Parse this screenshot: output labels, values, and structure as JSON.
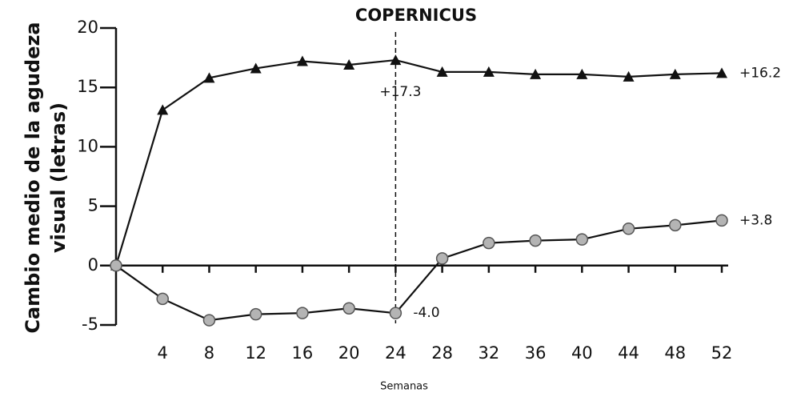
{
  "chart_data": {
    "type": "line",
    "title": "COPERNICUS",
    "xlabel": "Semanas",
    "ylabel": [
      "Cambio medio de la agudeza",
      "visual (letras)"
    ],
    "x": [
      0,
      4,
      8,
      12,
      16,
      20,
      24,
      28,
      32,
      36,
      40,
      44,
      48,
      52
    ],
    "xlim": [
      0,
      52
    ],
    "xticks": [
      4,
      8,
      12,
      16,
      20,
      24,
      28,
      32,
      36,
      40,
      44,
      48,
      52
    ],
    "ylim": [
      -5,
      20
    ],
    "yticks": [
      -5,
      0,
      5,
      10,
      15,
      20
    ],
    "vline": 24,
    "series": [
      {
        "marker": "triangle",
        "color": "#111111",
        "values": [
          0,
          13.1,
          15.8,
          16.6,
          17.2,
          16.9,
          17.3,
          16.3,
          16.3,
          16.1,
          16.1,
          15.9,
          16.1,
          16.2
        ],
        "value_labels": [
          null,
          null,
          null,
          null,
          null,
          null,
          "+17.3",
          null,
          null,
          null,
          null,
          null,
          null,
          "+16.2"
        ]
      },
      {
        "marker": "circle",
        "color": "#b4b4b4",
        "values": [
          0,
          -2.8,
          -4.6,
          -4.1,
          -4.0,
          -3.6,
          -4.0,
          0.6,
          1.9,
          2.1,
          2.2,
          3.1,
          3.4,
          3.8
        ],
        "value_labels": [
          null,
          null,
          null,
          null,
          null,
          null,
          "-4.0",
          null,
          null,
          null,
          null,
          null,
          null,
          "+3.8"
        ]
      }
    ]
  }
}
